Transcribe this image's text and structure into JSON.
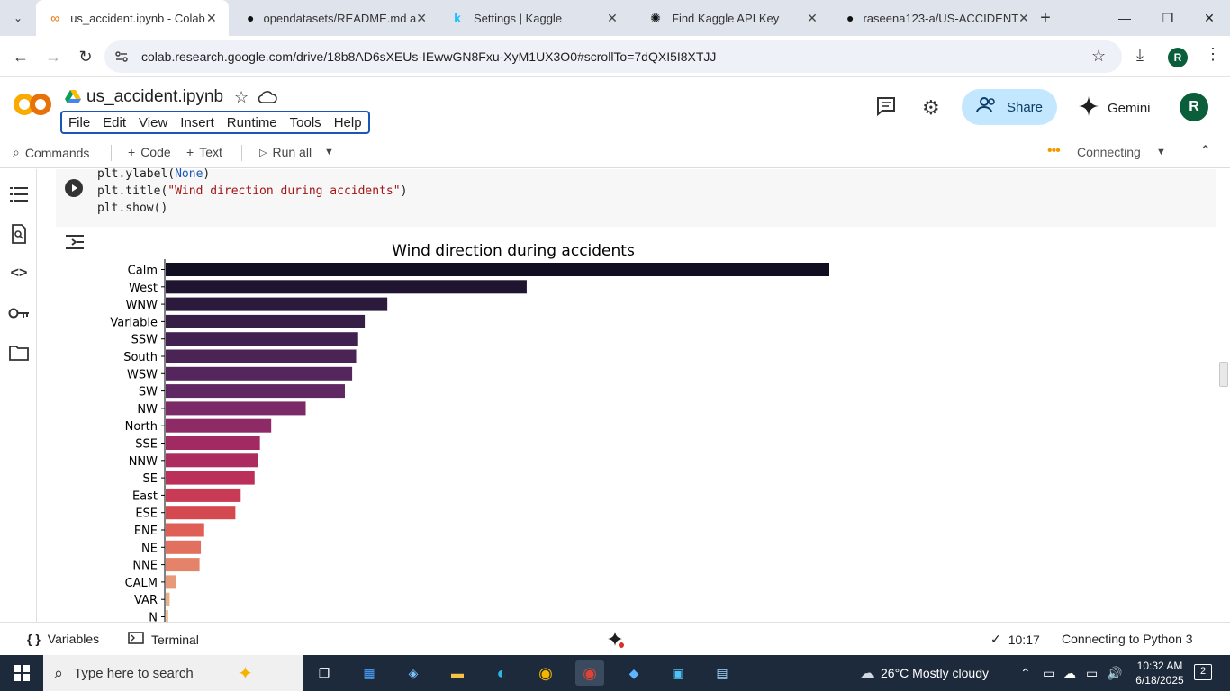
{
  "browser": {
    "tabs": [
      {
        "title": "us_accident.ipynb - Colab",
        "icon": "colab-icon",
        "active": true
      },
      {
        "title": "opendatasets/README.md a",
        "icon": "github-icon",
        "active": false
      },
      {
        "title": "Settings | Kaggle",
        "icon": "kaggle-icon",
        "active": false
      },
      {
        "title": "Find Kaggle API Key",
        "icon": "openai-icon",
        "active": false
      },
      {
        "title": "raseena123-a/US-ACCIDENT",
        "icon": "github-icon",
        "active": false
      }
    ],
    "url": "colab.research.google.com/drive/18b8AD6sXEUs-IEwwGN8Fxu-XyM1UX3O0#scrollTo=7dQXI5I8XTJJ",
    "profile_initial": "R"
  },
  "colab": {
    "notebook_title": "us_accident.ipynb",
    "menu": [
      "File",
      "Edit",
      "View",
      "Insert",
      "Runtime",
      "Tools",
      "Help"
    ],
    "share_label": "Share",
    "gemini_label": "Gemini",
    "avatar_initial": "R"
  },
  "toolbar": {
    "commands_label": "Commands",
    "code_label": "Code",
    "text_label": "Text",
    "run_all_label": "Run all",
    "connection_status": "Connecting"
  },
  "cell": {
    "code_lines": [
      {
        "pre": "plt.ylabel(",
        "arg": "None",
        "argclass": "kw-none",
        "post": ")"
      },
      {
        "pre": "plt.title(",
        "arg": "\"Wind direction during accidents\"",
        "argclass": "str",
        "post": ")"
      },
      {
        "pre": "plt.show()",
        "arg": "",
        "argclass": "",
        "post": ""
      }
    ]
  },
  "chart_data": {
    "type": "bar",
    "orientation": "horizontal",
    "title": "Wind direction during accidents",
    "categories": [
      "Calm",
      "West",
      "WNW",
      "Variable",
      "SSW",
      "South",
      "WSW",
      "SW",
      "NW",
      "North",
      "SSE",
      "NNW",
      "SE",
      "East",
      "ESE",
      "ENE",
      "NE",
      "NNE",
      "CALM",
      "VAR",
      "N"
    ],
    "values": [
      100,
      54.4,
      33.4,
      30.0,
      29.0,
      28.7,
      28.1,
      27.0,
      21.1,
      15.9,
      14.2,
      13.9,
      13.4,
      11.3,
      10.5,
      5.8,
      5.3,
      5.1,
      1.6,
      0.6,
      0.4
    ],
    "colors": [
      "#120e22",
      "#1f1530",
      "#2b1a3c",
      "#361e46",
      "#41214f",
      "#4b2456",
      "#55265d",
      "#602862",
      "#7a2a66",
      "#8e2a66",
      "#a12a63",
      "#ad2c5f",
      "#bb305a",
      "#c93a55",
      "#d44850",
      "#df5e56",
      "#e2705f",
      "#e48369",
      "#e69a78",
      "#eab089",
      "#edc3a0"
    ],
    "xlabel": "",
    "ylabel": ""
  },
  "statusbar": {
    "variables_label": "Variables",
    "terminal_label": "Terminal",
    "exec_time": "10:17",
    "runtime_status": "Connecting to Python 3"
  },
  "taskbar": {
    "search_placeholder": "Type here to search",
    "weather": "26°C  Mostly cloudy",
    "time": "10:32 AM",
    "date": "6/18/2025",
    "notification_count": "2"
  }
}
